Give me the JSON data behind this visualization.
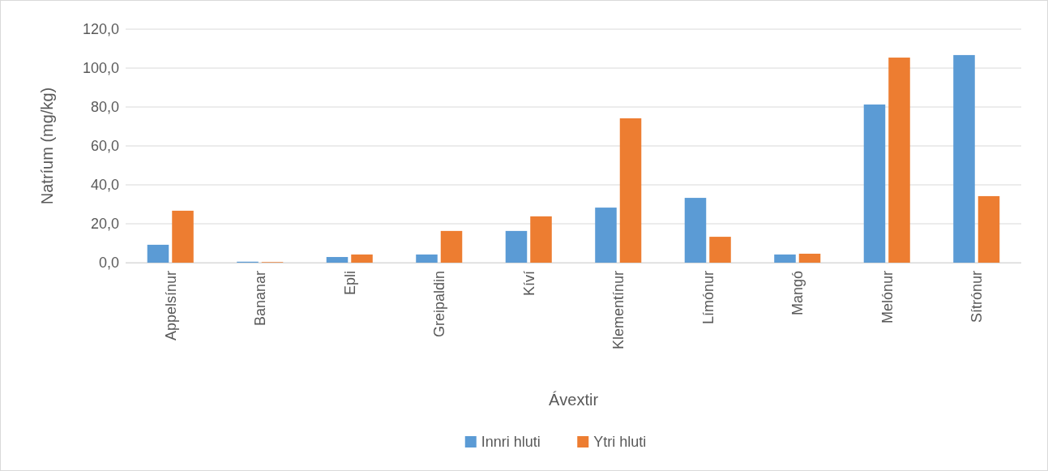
{
  "chart_data": {
    "type": "bar",
    "xlabel": "Ávextir",
    "ylabel": "Natríum (mg/kg)",
    "categories": [
      "Appelsínur",
      "Bananar",
      "Epli",
      "Greipaldin",
      "Kíví",
      "Klementínur",
      "Límónur",
      "Mangó",
      "Melónur",
      "Sítrónur"
    ],
    "series": [
      {
        "name": "Innri hluti",
        "color": "#5b9bd5",
        "values": [
          9.2,
          0.5,
          2.9,
          4.2,
          16.3,
          28.3,
          33.3,
          4.2,
          81.3,
          106.7
        ]
      },
      {
        "name": "Ytri hluti",
        "color": "#ed7d31",
        "values": [
          26.7,
          0.3,
          4.2,
          16.3,
          23.8,
          74.2,
          13.3,
          4.6,
          105.4,
          34.2
        ]
      }
    ],
    "ylim": [
      0,
      120
    ],
    "yticks": [
      {
        "value": 0,
        "label": "0,0"
      },
      {
        "value": 20,
        "label": "20,0"
      },
      {
        "value": 40,
        "label": "40,0"
      },
      {
        "value": 60,
        "label": "60,0"
      },
      {
        "value": 80,
        "label": "80,0"
      },
      {
        "value": 100,
        "label": "100,0"
      },
      {
        "value": 120,
        "label": "120,0"
      }
    ],
    "grid": "y",
    "legend": "bottom"
  }
}
